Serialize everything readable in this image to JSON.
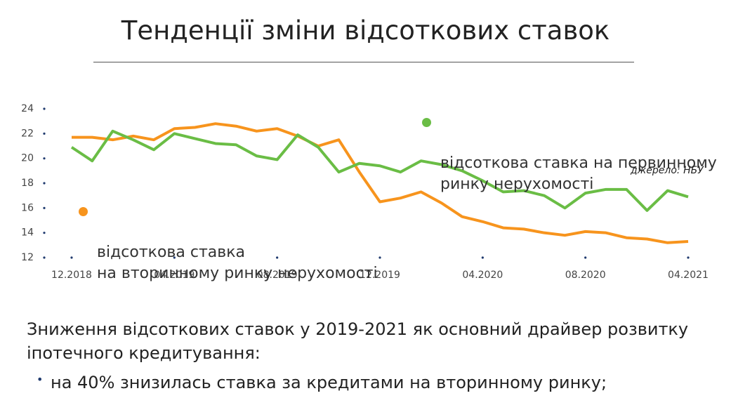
{
  "header": {
    "title": "Тенденції зміни відсоткових ставок"
  },
  "chart_data": {
    "type": "line",
    "categories": [
      "12.2018",
      null,
      null,
      null,
      null,
      "04.2019",
      null,
      null,
      null,
      null,
      "08.2019",
      null,
      null,
      null,
      null,
      "12.2019",
      null,
      null,
      null,
      null,
      "04.2020",
      null,
      null,
      null,
      null,
      "08.2020",
      null,
      null,
      null,
      null,
      "04.2021"
    ],
    "series": [
      {
        "name": "відсоткова ставка на первинному\nринку нерухомості",
        "color": "#6abd45",
        "values": [
          20.9,
          19.8,
          22.2,
          21.5,
          20.7,
          22.0,
          21.6,
          21.2,
          21.1,
          20.2,
          19.9,
          21.9,
          20.9,
          18.9,
          19.6,
          19.4,
          18.9,
          19.8,
          19.5,
          19.0,
          18.2,
          17.3,
          17.4,
          17.0,
          16.0,
          17.2,
          17.5,
          17.5,
          15.8,
          17.4,
          16.9
        ]
      },
      {
        "name": "відсоткова ставка\nна вторинному ринку нерухомості",
        "color": "#f7941d",
        "values": [
          21.7,
          21.7,
          21.5,
          21.8,
          21.5,
          22.4,
          22.5,
          22.8,
          22.6,
          22.2,
          22.4,
          21.8,
          21.0,
          21.5,
          18.9,
          16.5,
          16.8,
          17.3,
          16.4,
          15.3,
          14.9,
          14.4,
          14.3,
          14.0,
          13.8,
          14.1,
          14.0,
          13.6,
          13.5,
          13.2,
          13.3
        ]
      }
    ],
    "ylim": [
      12,
      24
    ],
    "yticks": [
      12,
      14,
      16,
      18,
      20,
      22,
      24
    ],
    "source": "джерело: НБУ"
  },
  "body": {
    "text": "Зниження відсоткових ставок у 2019-2021 як основний драйвер розвитку іпотечного кредитування:",
    "bullets": [
      "на 40% знизилась ставка за кредитами на вторинному ринку;"
    ]
  }
}
